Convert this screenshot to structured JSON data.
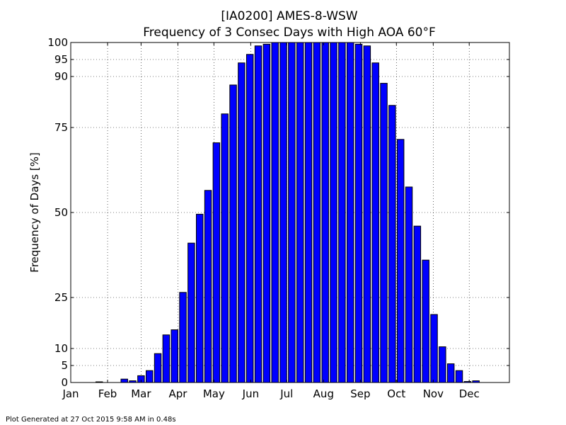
{
  "chart_data": {
    "type": "bar",
    "title": "[IA0200] AMES-8-WSW",
    "subtitle": "Frequency of 3 Consec Days with High AOA 60°F",
    "xlabel": "",
    "ylabel": "Frequency of Days [%]",
    "ylim": [
      0,
      100
    ],
    "yticks": [
      0,
      5,
      10,
      25,
      50,
      75,
      90,
      95,
      100
    ],
    "xlim": [
      0,
      52.4
    ],
    "xtick_labels": [
      "Jan",
      "Feb",
      "Mar",
      "Apr",
      "May",
      "Jun",
      "Jul",
      "Aug",
      "Sep",
      "Oct",
      "Nov",
      "Dec"
    ],
    "xtick_positions": [
      0,
      4.4,
      8.4,
      12.8,
      17.1,
      21.5,
      25.8,
      30.2,
      34.6,
      38.9,
      43.3,
      47.6
    ],
    "grid": true,
    "bar_color": "#0000ff",
    "bar_edge_color": "#000000",
    "values": [
      0,
      0,
      0,
      0.2,
      0,
      0,
      1,
      0.5,
      2,
      3.5,
      8.5,
      14,
      15.5,
      26.5,
      41,
      49.5,
      56.5,
      70.5,
      79,
      87.5,
      94,
      96.5,
      99,
      99.5,
      100,
      100,
      100,
      100,
      100,
      100,
      100,
      100,
      100,
      100,
      99.5,
      99,
      94,
      88,
      81.5,
      71.5,
      57.5,
      46,
      36,
      20,
      10.5,
      5.5,
      3.5,
      0.3,
      0.5,
      0,
      0,
      0
    ]
  },
  "footer": "Plot Generated at 27 Oct 2015 9:58 AM in 0.48s"
}
